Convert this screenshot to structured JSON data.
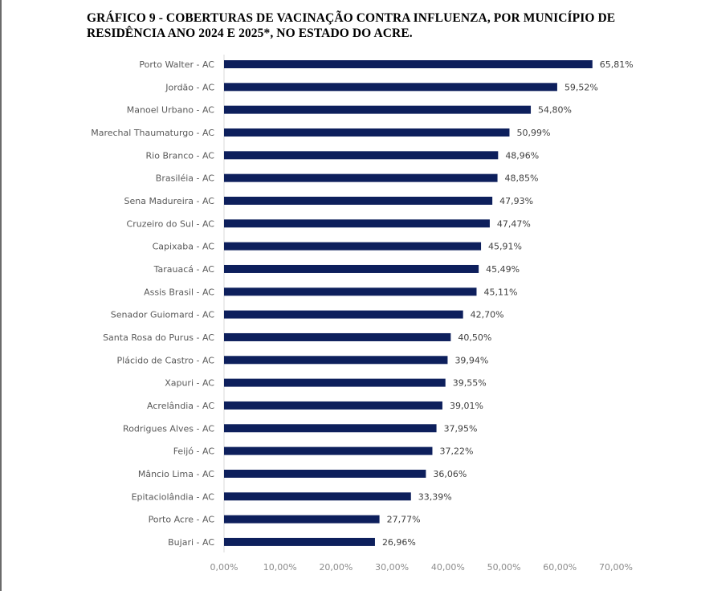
{
  "chart_data": {
    "type": "bar",
    "orientation": "horizontal",
    "title": "GRÁFICO 9 - COBERTURAS DE VACINAÇÃO CONTRA INFLUENZA, POR MUNICÍPIO DE RESIDÊNCIA ANO 2024 E 2025*, NO ESTADO DO ACRE.",
    "xlabel": "",
    "ylabel": "",
    "xlim": [
      0,
      70
    ],
    "x_ticks": [
      "0,00%",
      "10,00%",
      "20,00%",
      "30,00%",
      "40,00%",
      "50,00%",
      "60,00%",
      "70,00%"
    ],
    "grid": false,
    "bar_color": "#0d1f5c",
    "categories": [
      "Porto Walter - AC",
      "Jordão - AC",
      "Manoel Urbano - AC",
      "Marechal Thaumaturgo - AC",
      "Rio Branco - AC",
      "Brasiléia - AC",
      "Sena Madureira - AC",
      "Cruzeiro do Sul - AC",
      "Capixaba - AC",
      "Tarauacá - AC",
      "Assis Brasil - AC",
      "Senador Guiomard - AC",
      "Santa Rosa do Purus - AC",
      "Plácido de Castro - AC",
      "Xapuri - AC",
      "Acrelândia - AC",
      "Rodrigues Alves - AC",
      "Feijó - AC",
      "Mâncio Lima - AC",
      "Epitaciolândia - AC",
      "Porto Acre - AC",
      "Bujari - AC"
    ],
    "values": [
      65.81,
      59.52,
      54.8,
      50.99,
      48.96,
      48.85,
      47.93,
      47.47,
      45.91,
      45.49,
      45.11,
      42.7,
      40.5,
      39.94,
      39.55,
      39.01,
      37.95,
      37.22,
      36.06,
      33.39,
      27.77,
      26.96
    ],
    "value_labels": [
      "65,81%",
      "59,52%",
      "54,80%",
      "50,99%",
      "48,96%",
      "48,85%",
      "47,93%",
      "47,47%",
      "45,91%",
      "45,49%",
      "45,11%",
      "42,70%",
      "40,50%",
      "39,94%",
      "39,55%",
      "39,01%",
      "37,95%",
      "37,22%",
      "36,06%",
      "33,39%",
      "27,77%",
      "26,96%"
    ]
  }
}
